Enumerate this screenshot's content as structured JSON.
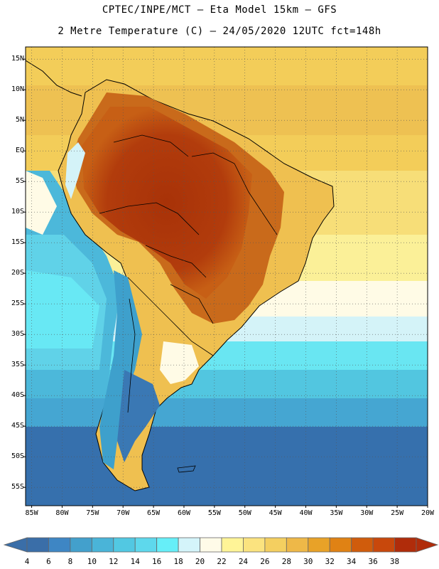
{
  "header": {
    "line1": "CPTEC/INPE/MCT –  Eta Model 15km – GFS",
    "line2": "2 Metre Temperature (C) – 24/05/2020 12UTC fct=148h"
  },
  "map": {
    "variable": "2 Metre Temperature",
    "units": "C",
    "region": "South America",
    "lat_range": [
      -58,
      17
    ],
    "lon_range": [
      -86,
      -20
    ],
    "lat_ticks": [
      15,
      10,
      5,
      0,
      -5,
      -10,
      -15,
      -20,
      -25,
      -30,
      -35,
      -40,
      -45,
      -50,
      -55
    ],
    "lat_labels": [
      "15N",
      "10N",
      "5N",
      "EQ",
      "5S",
      "10S",
      "15S",
      "20S",
      "25S",
      "30S",
      "35S",
      "40S",
      "45S",
      "50S",
      "55S"
    ],
    "lon_ticks": [
      -85,
      -80,
      -75,
      -70,
      -65,
      -60,
      -55,
      -50,
      -45,
      -40,
      -35,
      -30,
      -25,
      -20
    ],
    "lon_labels": [
      "85W",
      "80W",
      "75W",
      "70W",
      "65W",
      "60W",
      "55W",
      "50W",
      "45W",
      "40W",
      "35W",
      "30W",
      "25W",
      "20W"
    ],
    "gridlines": "dotted"
  },
  "colorbar": {
    "values": [
      "4",
      "6",
      "8",
      "10",
      "12",
      "14",
      "16",
      "18",
      "20",
      "22",
      "24",
      "26",
      "28",
      "30",
      "32",
      "34",
      "36",
      "38"
    ],
    "colors": [
      "#3a6ea8",
      "#3e86c4",
      "#43a0cc",
      "#4ab4d8",
      "#52c8e2",
      "#5ed8ec",
      "#66eef8",
      "#d4f4fa",
      "#fffbe8",
      "#fff497",
      "#fbe37f",
      "#f4cf60",
      "#eeb848",
      "#e8a228",
      "#e08214",
      "#d05c0c",
      "#c8480c",
      "#b02c0a"
    ]
  }
}
